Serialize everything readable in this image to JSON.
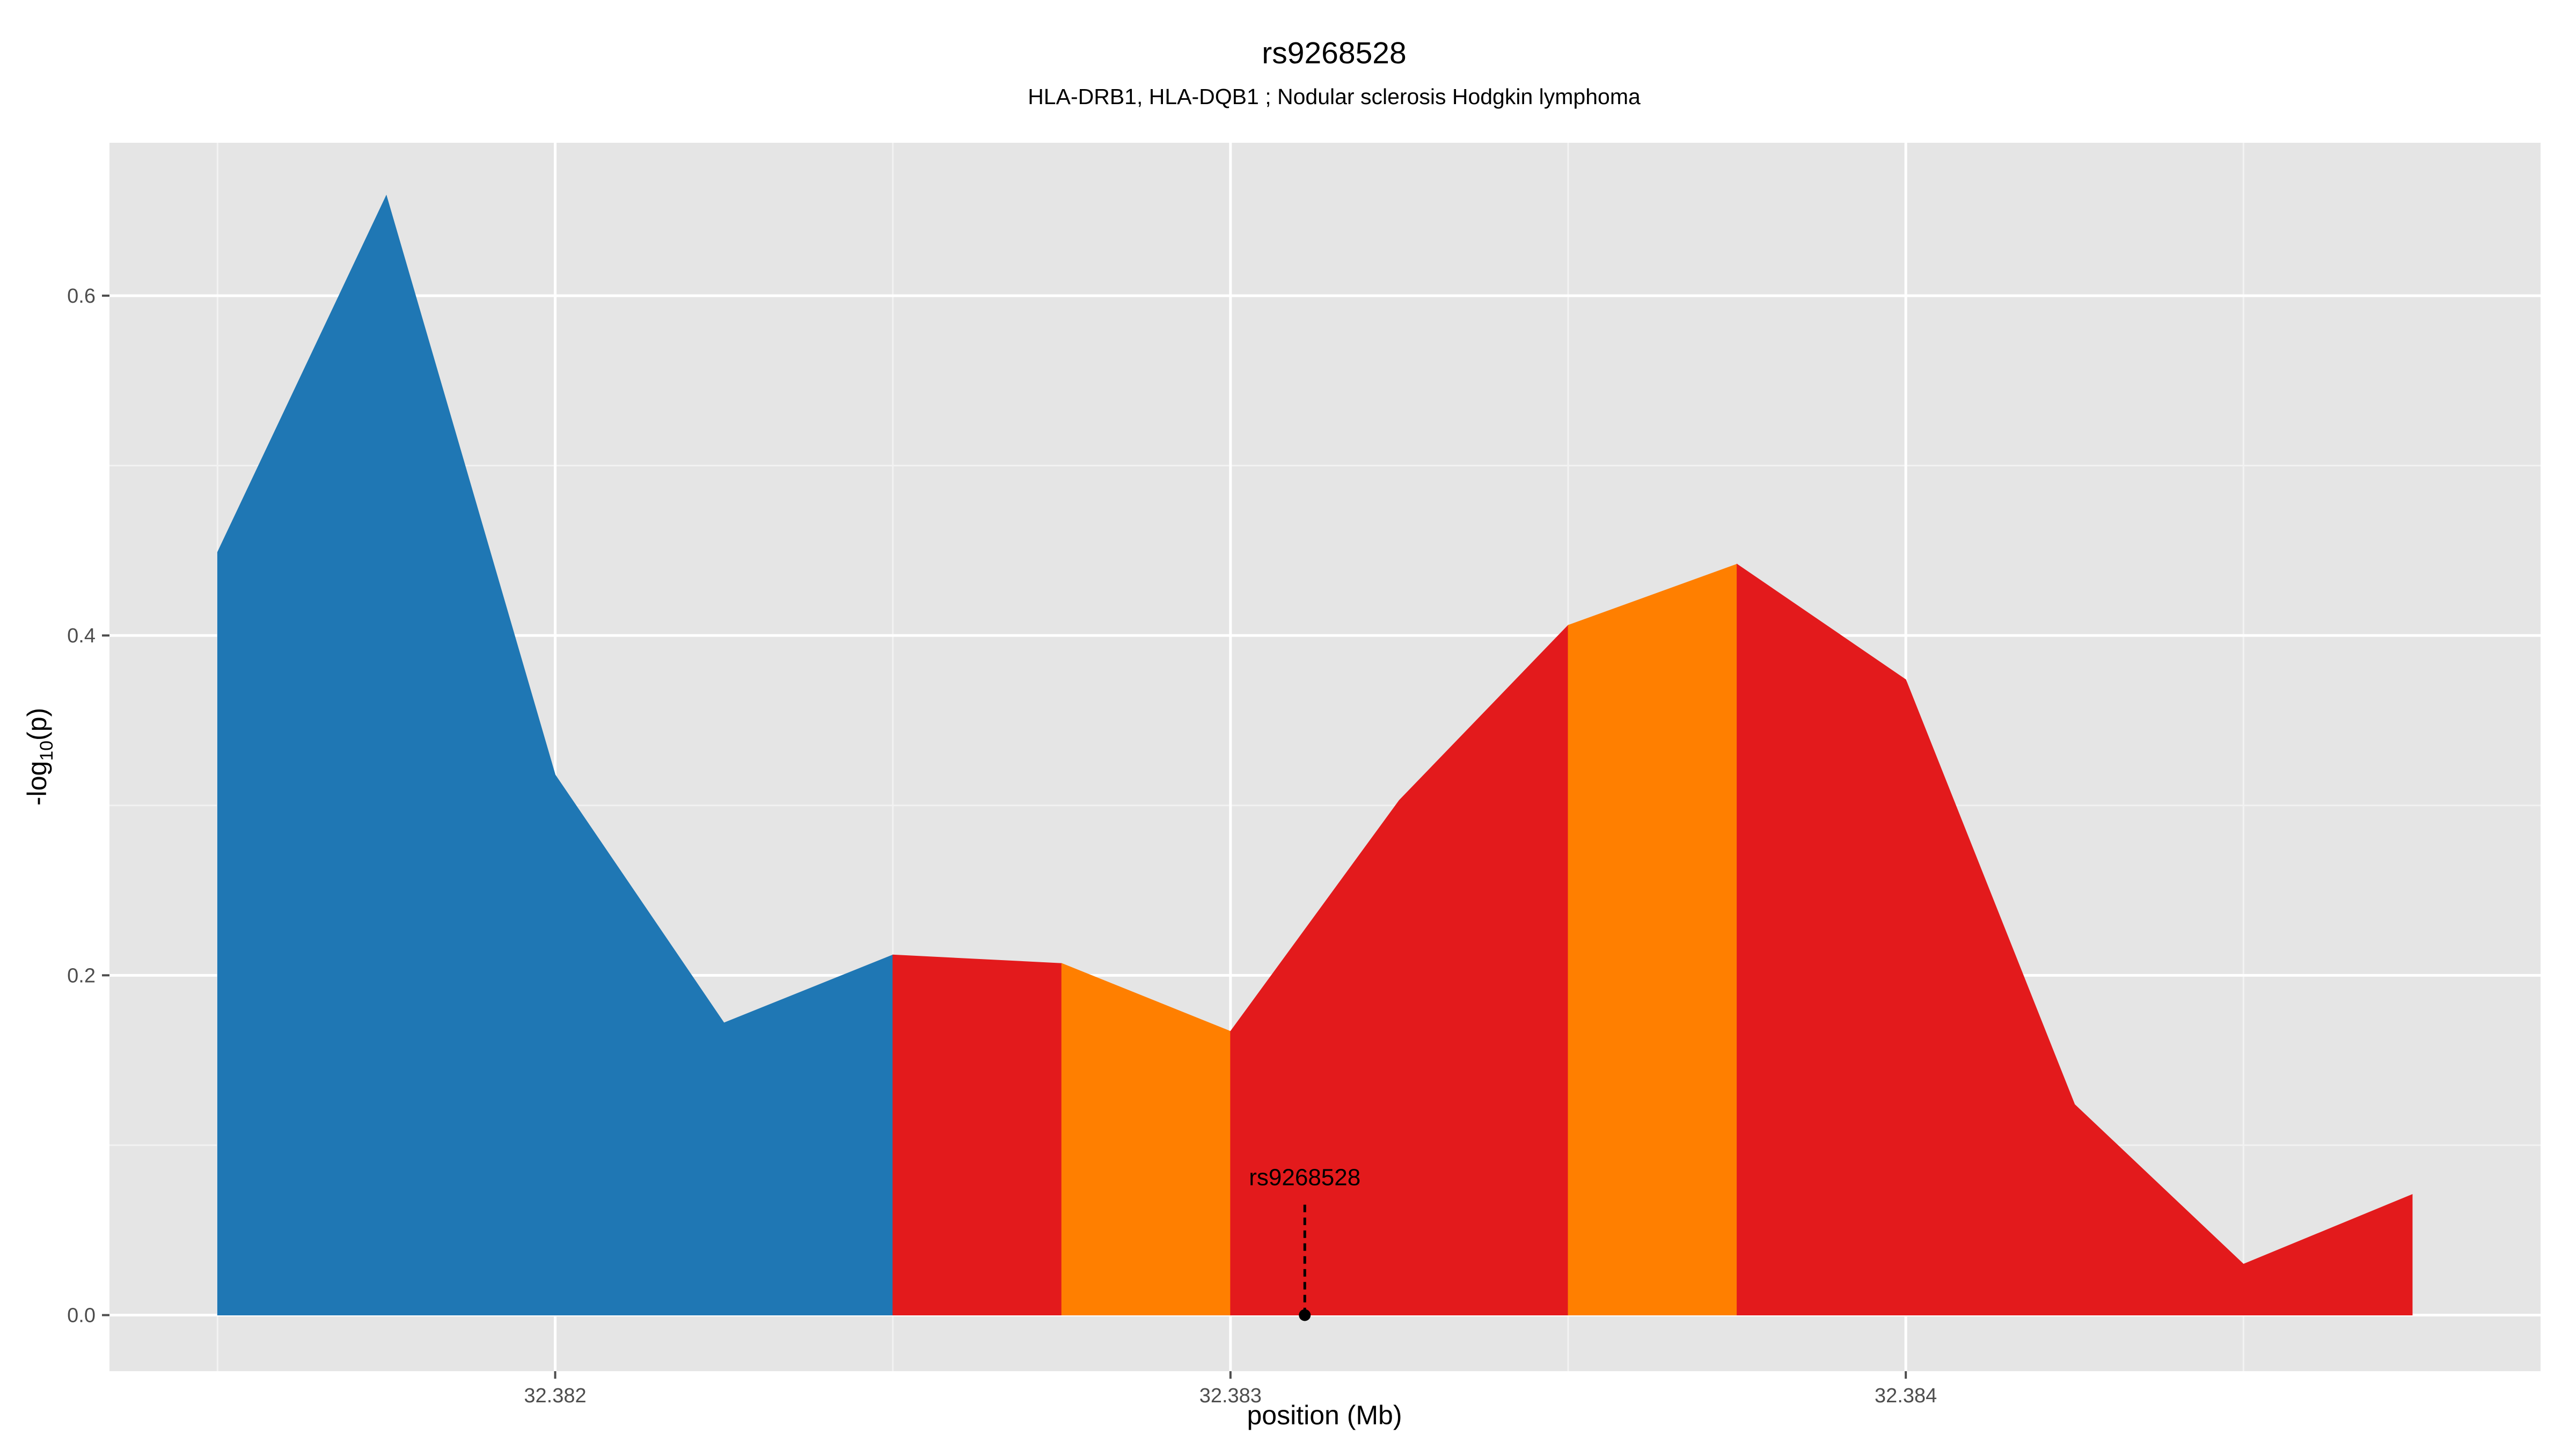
{
  "chart_data": {
    "type": "area",
    "title": "rs9268528",
    "subtitle": "HLA-DRB1, HLA-DQB1 ; Nodular sclerosis Hodgkin lymphoma",
    "xlabel": "position (Mb)",
    "ylabel_main": "-log",
    "ylabel_sub": "10",
    "ylabel_tail": "(p)",
    "xlim": [
      32.38134,
      32.38494
    ],
    "ylim": [
      -0.033,
      0.69
    ],
    "xticks": [
      32.382,
      32.383,
      32.384
    ],
    "xtick_labels": [
      "32.382",
      "32.383",
      "32.384"
    ],
    "yticks": [
      0.0,
      0.2,
      0.4,
      0.6
    ],
    "ytick_labels": [
      "0.0",
      "0.2",
      "0.4",
      "0.6"
    ],
    "grid": true,
    "points": [
      {
        "x": 32.3815,
        "y": 0.449
      },
      {
        "x": 32.38175,
        "y": 0.659
      },
      {
        "x": 32.382,
        "y": 0.318
      },
      {
        "x": 32.38225,
        "y": 0.172
      },
      {
        "x": 32.3825,
        "y": 0.212
      },
      {
        "x": 32.38275,
        "y": 0.207
      },
      {
        "x": 32.383,
        "y": 0.167
      },
      {
        "x": 32.38325,
        "y": 0.303
      },
      {
        "x": 32.3835,
        "y": 0.406
      },
      {
        "x": 32.38375,
        "y": 0.442
      },
      {
        "x": 32.384,
        "y": 0.374
      },
      {
        "x": 32.38425,
        "y": 0.124
      },
      {
        "x": 32.3845,
        "y": 0.03
      },
      {
        "x": 32.38475,
        "y": 0.071
      }
    ],
    "segments": [
      {
        "from": 32.3815,
        "to": 32.3825,
        "color": "#1f77b4"
      },
      {
        "from": 32.3825,
        "to": 32.38275,
        "color": "#e31a1c"
      },
      {
        "from": 32.38275,
        "to": 32.383,
        "color": "#ff7f00"
      },
      {
        "from": 32.383,
        "to": 32.3835,
        "color": "#e31a1c"
      },
      {
        "from": 32.3835,
        "to": 32.38375,
        "color": "#ff7f00"
      },
      {
        "from": 32.38375,
        "to": 32.38475,
        "color": "#e31a1c"
      }
    ],
    "annotation": {
      "label": "rs9268528",
      "x": 32.38311,
      "y": 0.0,
      "line_top_y": 0.065
    }
  },
  "colors": {
    "panel_background": "#e5e5e5",
    "grid_major": "#ffffff",
    "grid_minor": "#f2f2f2"
  }
}
